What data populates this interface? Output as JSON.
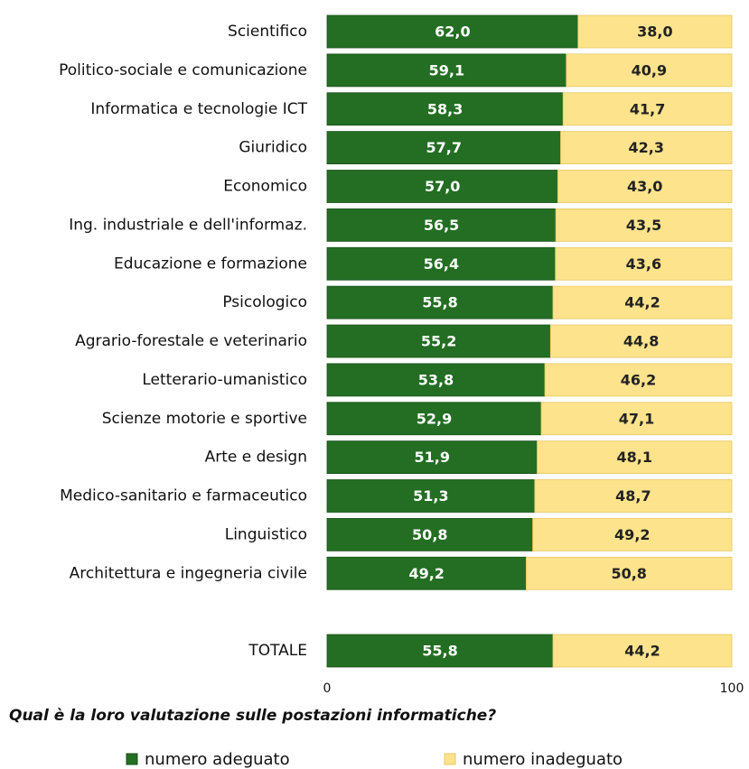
{
  "chart_data": {
    "type": "stacked_bar_horizontal",
    "title": "Qual è la loro valutazione sulle postazioni informatiche?",
    "categories": [
      "Scientifico",
      "Politico-sociale e comunicazione",
      "Informatica e tecnologie ICT",
      "Giuridico",
      "Economico",
      "Ing. industriale e dell'informaz.",
      "Educazione e formazione",
      "Psicologico",
      "Agrario-forestale e veterinario",
      "Letterario-umanistico",
      "Scienze motorie e sportive",
      "Arte e design",
      "Medico-sanitario e farmaceutico",
      "Linguistico",
      "Architettura e ingegneria civile",
      null,
      "TOTALE"
    ],
    "series": [
      {
        "name": "numero adeguato",
        "color": "#236e23",
        "values": [
          62.0,
          59.1,
          58.3,
          57.7,
          57.0,
          56.5,
          56.4,
          55.8,
          55.2,
          53.8,
          52.9,
          51.9,
          51.3,
          50.8,
          49.2,
          null,
          55.8
        ],
        "value_labels": [
          "62,0",
          "59,1",
          "58,3",
          "57,7",
          "57,0",
          "56,5",
          "56,4",
          "55,8",
          "55,2",
          "53,8",
          "52,9",
          "51,9",
          "51,3",
          "50,8",
          "49,2",
          null,
          "55,8"
        ]
      },
      {
        "name": "numero inadeguato",
        "color": "#fde38c",
        "values": [
          38.0,
          40.9,
          41.7,
          42.3,
          43.0,
          43.5,
          43.6,
          44.2,
          44.8,
          46.2,
          47.1,
          48.1,
          48.7,
          49.2,
          50.8,
          null,
          44.2
        ],
        "value_labels": [
          "38,0",
          "40,9",
          "41,7",
          "42,3",
          "43,0",
          "43,5",
          "43,6",
          "44,2",
          "44,8",
          "46,2",
          "47,1",
          "48,1",
          "48,7",
          "49,2",
          "50,8",
          null,
          "44,2"
        ]
      }
    ],
    "xlim": [
      0,
      100
    ],
    "xticks": [
      0,
      100
    ]
  }
}
